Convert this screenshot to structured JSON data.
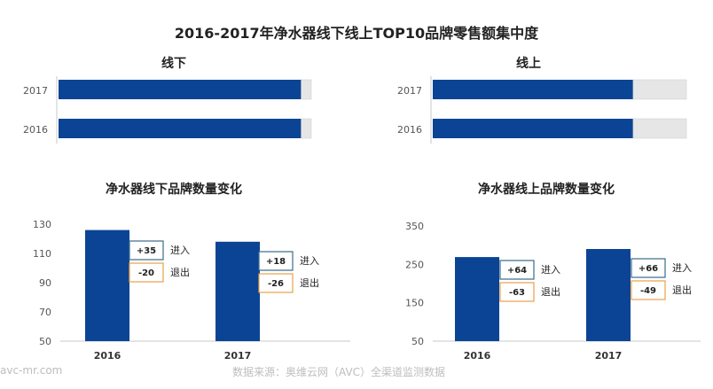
{
  "title": "2016-2017年净水器线下线上TOP10品牌零售额集中度",
  "colors": {
    "bar": "#0b4494",
    "remainder": "#e6e6e6",
    "in_box_border": "#3a6c8a",
    "out_box_border": "#e8a04a",
    "axis": "#c8c8c8",
    "text": "#555555"
  },
  "chart_data": [
    {
      "type": "bar",
      "orientation": "horizontal",
      "stacked": true,
      "title": "线下",
      "categories": [
        "2017",
        "2016"
      ],
      "series": [
        {
          "values": [
            0.96,
            0.96
          ]
        },
        {
          "values": [
            0.04,
            0.04
          ]
        }
      ]
    },
    {
      "type": "bar",
      "orientation": "horizontal",
      "stacked": true,
      "title": "线上",
      "categories": [
        "2017",
        "2016"
      ],
      "series": [
        {
          "values": [
            0.79,
            0.79
          ]
        },
        {
          "values": [
            0.21,
            0.21
          ]
        }
      ]
    },
    {
      "type": "bar",
      "title": "净水器线下品牌数量变化",
      "categories": [
        "2016",
        "2017"
      ],
      "values": [
        126,
        118
      ],
      "yticks": [
        130,
        110,
        90,
        70,
        50
      ],
      "ylim": [
        50,
        130
      ],
      "annotations": [
        {
          "category": "2016",
          "in": "+35",
          "in_label": "进入",
          "out": "-20",
          "out_label": "退出"
        },
        {
          "category": "2017",
          "in": "+18",
          "in_label": "进入",
          "out": "-26",
          "out_label": "退出"
        }
      ]
    },
    {
      "type": "bar",
      "title": "净水器线上品牌数量变化",
      "categories": [
        "2016",
        "2017"
      ],
      "values": [
        269,
        290
      ],
      "yticks": [
        350,
        250,
        150,
        50
      ],
      "ylim": [
        50,
        350
      ],
      "annotations": [
        {
          "category": "2016",
          "in": "+64",
          "in_label": "进入",
          "out": "-63",
          "out_label": "退出"
        },
        {
          "category": "2017",
          "in": "+66",
          "in_label": "进入",
          "out": "-49",
          "out_label": "退出"
        }
      ]
    }
  ],
  "footer": {
    "site": "avc-mr.com",
    "source": "数据来源：奥维云网（AVC）全渠道监测数据"
  }
}
